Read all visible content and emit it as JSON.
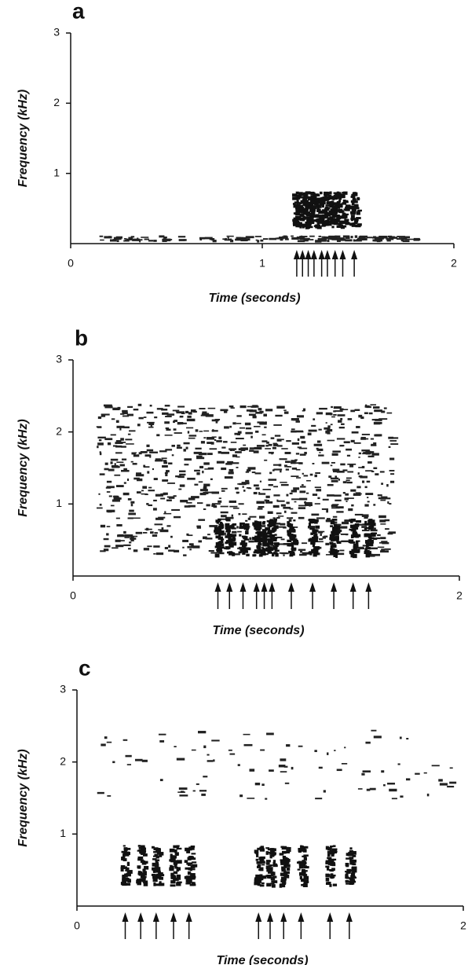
{
  "chart_data": [
    {
      "type": "spectrogram",
      "panel_label": "a",
      "xlabel": "Time (seconds)",
      "ylabel": "Frequency (kHz)",
      "xlim": [
        0,
        2
      ],
      "ylim": [
        0,
        3
      ],
      "xticks": [
        0,
        1,
        2
      ],
      "yticks": [
        1,
        2,
        3
      ],
      "arrows": [
        1.18,
        1.21,
        1.24,
        1.27,
        1.31,
        1.34,
        1.38,
        1.42,
        1.48
      ]
    },
    {
      "type": "spectrogram",
      "panel_label": "b",
      "xlabel": "Time (seconds)",
      "ylabel": "Frequency (kHz)",
      "xlim": [
        0,
        2
      ],
      "ylim": [
        0,
        3
      ],
      "xticks": [
        0,
        2
      ],
      "yticks": [
        1,
        2,
        3
      ],
      "arrows": [
        0.75,
        0.81,
        0.88,
        0.95,
        0.99,
        1.03,
        1.13,
        1.24,
        1.35,
        1.45,
        1.53
      ]
    },
    {
      "type": "spectrogram",
      "panel_label": "c",
      "xlabel": "Time (seconds)",
      "ylabel": "Frequency (kHz)",
      "xlim": [
        0,
        2
      ],
      "ylim": [
        0,
        3
      ],
      "xticks": [
        0,
        2
      ],
      "yticks": [
        1,
        2,
        3
      ],
      "arrows": [
        0.25,
        0.33,
        0.41,
        0.5,
        0.58,
        0.94,
        1.0,
        1.07,
        1.16,
        1.31,
        1.41
      ]
    }
  ]
}
